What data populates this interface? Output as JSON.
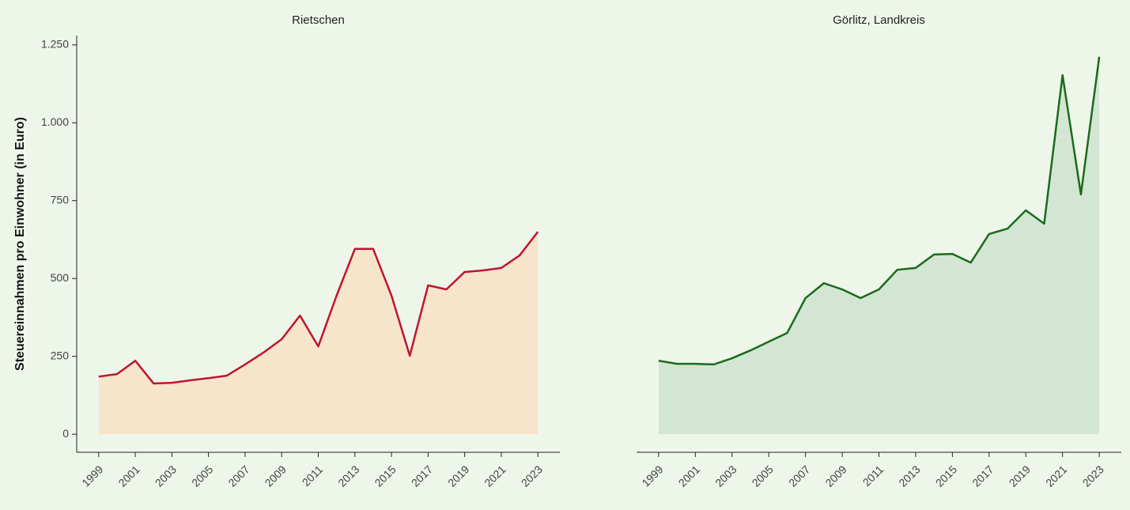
{
  "chart_data": [
    {
      "type": "area",
      "title": "Rietschen",
      "ylabel": "Steuereinnahmen pro Einwohner (in Euro)",
      "x": [
        1999,
        2000,
        2001,
        2002,
        2003,
        2004,
        2005,
        2006,
        2007,
        2008,
        2009,
        2010,
        2011,
        2012,
        2013,
        2014,
        2015,
        2016,
        2017,
        2018,
        2019,
        2020,
        2021,
        2022,
        2023
      ],
      "values": [
        185,
        193,
        236,
        163,
        165,
        173,
        180,
        188,
        224,
        262,
        305,
        381,
        282,
        445,
        595,
        595,
        445,
        252,
        478,
        465,
        521,
        526,
        534,
        574,
        650
      ],
      "color": "#c0142f",
      "fill": "#f6e4cb",
      "xlim": [
        1997.8,
        2024.2
      ],
      "xticks": [
        1999,
        2001,
        2003,
        2005,
        2007,
        2009,
        2011,
        2013,
        2015,
        2017,
        2019,
        2021,
        2023
      ],
      "ylim": [
        -58,
        1280
      ],
      "yticks": [
        0,
        250,
        500,
        750,
        {
          "value": 1000,
          "label": "1.000"
        },
        {
          "value": 1250,
          "label": "1.250"
        }
      ]
    },
    {
      "type": "area",
      "title": "Görlitz, Landkreis",
      "x": [
        1999,
        2000,
        2001,
        2002,
        2003,
        2004,
        2005,
        2006,
        2007,
        2008,
        2009,
        2010,
        2011,
        2012,
        2013,
        2014,
        2015,
        2016,
        2017,
        2018,
        2019,
        2020,
        2021,
        2022,
        2023
      ],
      "values": [
        236,
        226,
        226,
        224,
        244,
        269,
        297,
        325,
        437,
        485,
        465,
        437,
        465,
        528,
        534,
        577,
        579,
        551,
        643,
        660,
        719,
        676,
        1153,
        770,
        1212
      ],
      "color": "#1a6b1a",
      "fill": "#d3e6d3",
      "xlim": [
        1997.8,
        2024.2
      ],
      "xticks": [
        1999,
        2001,
        2003,
        2005,
        2007,
        2009,
        2011,
        2013,
        2015,
        2017,
        2019,
        2021,
        2023
      ],
      "ylim": [
        -58,
        1280
      ]
    }
  ]
}
